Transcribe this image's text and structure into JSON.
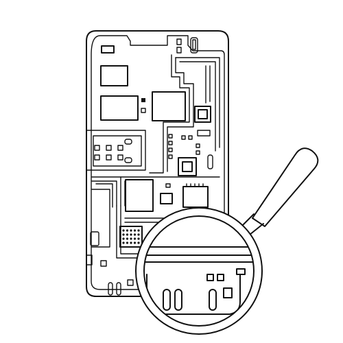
{
  "illustration": {
    "subject": "phone-circuit-board-under-magnifier",
    "style": "black line art on white",
    "stroke_color": "#111111",
    "background_color": "#ffffff"
  }
}
